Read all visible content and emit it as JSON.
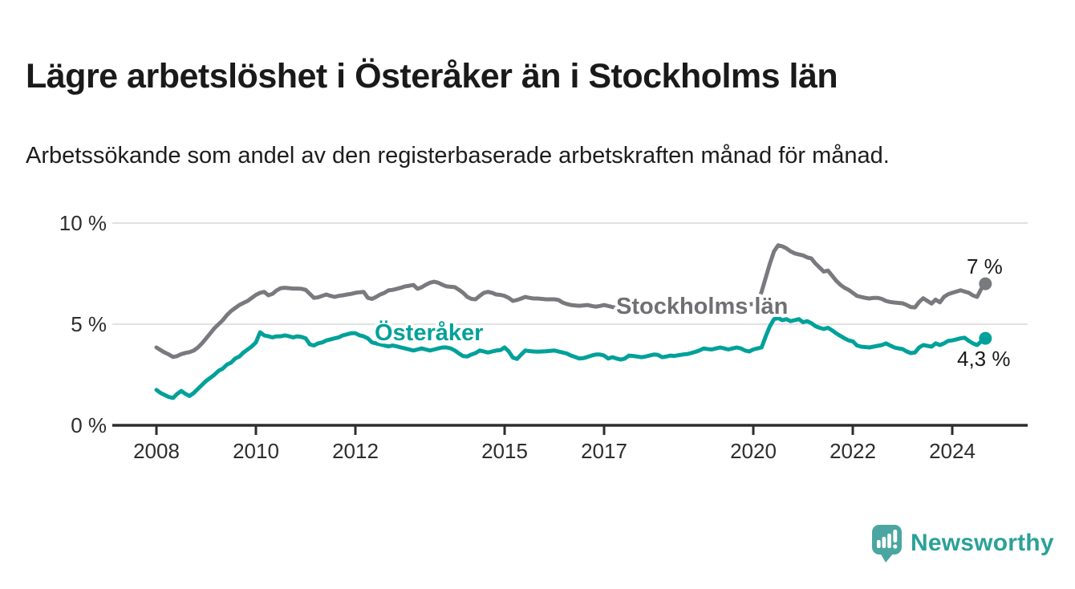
{
  "header": {
    "title": "Lägre arbetslöshet i Österåker än i Stockholms län",
    "subtitle": "Arbetssökande som andel av den registerbaserade arbetskraften månad för månad."
  },
  "branding": {
    "logo_text": "Newsworthy",
    "logo_text_color": "#2ba198",
    "logo_bubble_color": "#4ba6a1"
  },
  "colors": {
    "background": "#ffffff",
    "grid": "#e1e1e1",
    "axis": "#2d2d2d",
    "tick_label": "#2d2d2d",
    "annotation": "#1a1a1a",
    "stockholm_line": "#797a7d",
    "osteraker_line": "#00a19a"
  },
  "chart_data": {
    "type": "line",
    "title": "Lägre arbetslöshet i Österåker än i Stockholms län",
    "subtitle": "Arbetssökande som andel av den registerbaserade arbetskraften månad för månad.",
    "unit": "%",
    "x_start": "2008-01",
    "x_end": "2024-09",
    "points_per_year": 12,
    "ylim": [
      0,
      10
    ],
    "grid": "horizontal",
    "legend_position": "inline-labels",
    "y_ticks": [
      {
        "v": 0,
        "label": "0 %"
      },
      {
        "v": 5,
        "label": "5 %"
      },
      {
        "v": 10,
        "label": "10 %"
      }
    ],
    "x_ticks": [
      {
        "year": 2008,
        "label": "2008"
      },
      {
        "year": 2010,
        "label": "2010"
      },
      {
        "year": 2012,
        "label": "2012"
      },
      {
        "year": 2015,
        "label": "2015"
      },
      {
        "year": 2017,
        "label": "2017"
      },
      {
        "year": 2020,
        "label": "2020"
      },
      {
        "year": 2022,
        "label": "2022"
      },
      {
        "year": 2024,
        "label": "2024"
      }
    ],
    "series": [
      {
        "name": "Stockholms län",
        "color": "#797a7d",
        "label_color": "#6f7073",
        "end_label": "7 %",
        "end_value": 7.0,
        "values": [
          3.85,
          3.72,
          3.6,
          3.5,
          3.38,
          3.42,
          3.52,
          3.58,
          3.62,
          3.7,
          3.85,
          4.05,
          4.3,
          4.55,
          4.8,
          5.0,
          5.2,
          5.45,
          5.65,
          5.8,
          5.95,
          6.05,
          6.15,
          6.3,
          6.45,
          6.55,
          6.6,
          6.43,
          6.5,
          6.67,
          6.78,
          6.8,
          6.78,
          6.76,
          6.76,
          6.75,
          6.7,
          6.5,
          6.3,
          6.33,
          6.4,
          6.47,
          6.4,
          6.35,
          6.4,
          6.43,
          6.47,
          6.5,
          6.55,
          6.58,
          6.6,
          6.3,
          6.25,
          6.35,
          6.47,
          6.55,
          6.67,
          6.7,
          6.75,
          6.8,
          6.87,
          6.9,
          6.94,
          6.75,
          6.83,
          6.95,
          7.05,
          7.1,
          7.05,
          6.95,
          6.87,
          6.85,
          6.83,
          6.7,
          6.55,
          6.35,
          6.25,
          6.23,
          6.4,
          6.55,
          6.6,
          6.55,
          6.47,
          6.45,
          6.4,
          6.3,
          6.15,
          6.2,
          6.27,
          6.35,
          6.3,
          6.27,
          6.27,
          6.25,
          6.23,
          6.23,
          6.23,
          6.2,
          6.07,
          6.0,
          5.95,
          5.93,
          5.91,
          5.93,
          5.95,
          5.9,
          5.87,
          5.9,
          5.95,
          5.9,
          5.85,
          5.8,
          5.78,
          5.8,
          5.85,
          5.83,
          5.8,
          5.82,
          5.85,
          5.88,
          5.9,
          5.85,
          5.8,
          5.75,
          5.72,
          5.7,
          5.75,
          5.78,
          5.8,
          5.82,
          5.85,
          5.88,
          5.9,
          5.92,
          5.95,
          5.97,
          6.0,
          6.02,
          6.0,
          5.98,
          6.0,
          6.02,
          6.0,
          5.98,
          6.0,
          6.05,
          6.6,
          7.3,
          8.0,
          8.6,
          8.9,
          8.85,
          8.75,
          8.6,
          8.5,
          8.45,
          8.4,
          8.3,
          8.25,
          8.0,
          7.8,
          7.6,
          7.65,
          7.4,
          7.15,
          6.95,
          6.8,
          6.7,
          6.55,
          6.4,
          6.35,
          6.3,
          6.27,
          6.3,
          6.3,
          6.25,
          6.15,
          6.1,
          6.07,
          6.05,
          6.03,
          5.95,
          5.85,
          5.83,
          6.1,
          6.28,
          6.15,
          6.02,
          6.22,
          6.08,
          6.35,
          6.48,
          6.55,
          6.61,
          6.68,
          6.61,
          6.55,
          6.42,
          6.35,
          6.75,
          7.0
        ]
      },
      {
        "name": "Österåker",
        "color": "#00a19a",
        "label_color": "#00a19a",
        "end_label": "4,3 %",
        "end_value": 4.3,
        "values": [
          1.75,
          1.6,
          1.5,
          1.4,
          1.35,
          1.55,
          1.7,
          1.55,
          1.45,
          1.6,
          1.8,
          2.0,
          2.2,
          2.35,
          2.5,
          2.7,
          2.8,
          3.0,
          3.1,
          3.3,
          3.4,
          3.6,
          3.75,
          3.9,
          4.1,
          4.6,
          4.45,
          4.4,
          4.35,
          4.4,
          4.4,
          4.45,
          4.4,
          4.35,
          4.4,
          4.37,
          4.3,
          4.0,
          3.95,
          4.05,
          4.1,
          4.2,
          4.25,
          4.3,
          4.35,
          4.45,
          4.5,
          4.55,
          4.55,
          4.45,
          4.4,
          4.3,
          4.1,
          4.05,
          4.0,
          3.95,
          3.9,
          3.95,
          3.9,
          3.85,
          3.8,
          3.75,
          3.7,
          3.75,
          3.8,
          3.75,
          3.7,
          3.75,
          3.8,
          3.85,
          3.85,
          3.8,
          3.7,
          3.55,
          3.42,
          3.4,
          3.5,
          3.57,
          3.7,
          3.65,
          3.6,
          3.65,
          3.7,
          3.72,
          3.85,
          3.65,
          3.35,
          3.28,
          3.5,
          3.7,
          3.67,
          3.65,
          3.64,
          3.65,
          3.66,
          3.68,
          3.7,
          3.65,
          3.6,
          3.55,
          3.45,
          3.38,
          3.3,
          3.32,
          3.38,
          3.45,
          3.5,
          3.5,
          3.45,
          3.3,
          3.37,
          3.3,
          3.25,
          3.3,
          3.45,
          3.43,
          3.4,
          3.37,
          3.4,
          3.45,
          3.5,
          3.48,
          3.37,
          3.4,
          3.45,
          3.43,
          3.47,
          3.5,
          3.52,
          3.57,
          3.63,
          3.7,
          3.8,
          3.77,
          3.75,
          3.8,
          3.85,
          3.8,
          3.75,
          3.8,
          3.85,
          3.8,
          3.7,
          3.65,
          3.75,
          3.8,
          3.85,
          4.4,
          4.9,
          5.25,
          5.3,
          5.2,
          5.25,
          5.15,
          5.2,
          5.25,
          5.1,
          5.15,
          5.05,
          4.9,
          4.82,
          4.76,
          4.82,
          4.7,
          4.55,
          4.42,
          4.3,
          4.2,
          4.15,
          3.95,
          3.89,
          3.87,
          3.85,
          3.89,
          3.93,
          3.97,
          4.05,
          3.95,
          3.85,
          3.8,
          3.77,
          3.65,
          3.57,
          3.6,
          3.85,
          3.97,
          3.93,
          3.89,
          4.05,
          3.97,
          4.05,
          4.17,
          4.2,
          4.25,
          4.3,
          4.33,
          4.17,
          4.05,
          3.97,
          4.15,
          4.3
        ]
      }
    ]
  }
}
